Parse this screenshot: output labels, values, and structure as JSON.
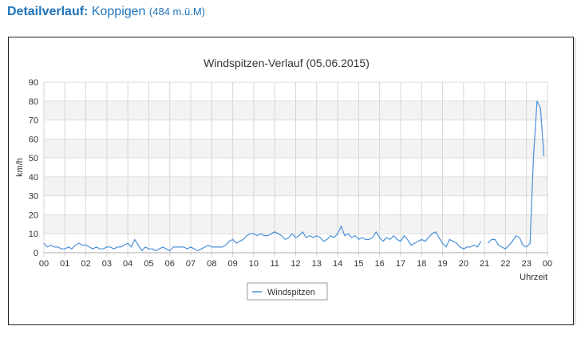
{
  "header": {
    "label": "Detailverlauf:",
    "station": "Koppigen",
    "elevation": "(484 m.ü.M)"
  },
  "chart_data": {
    "type": "line",
    "title": "Windspitzen-Verlauf (05.06.2015)",
    "xlabel": "Uhrzeit",
    "ylabel": "km/h",
    "xlim": [
      0,
      24
    ],
    "ylim": [
      0,
      90
    ],
    "x_tick_labels": [
      "00",
      "01",
      "02",
      "03",
      "04",
      "05",
      "06",
      "07",
      "08",
      "09",
      "10",
      "11",
      "12",
      "13",
      "14",
      "15",
      "16",
      "17",
      "18",
      "19",
      "20",
      "21",
      "22",
      "23",
      "00"
    ],
    "y_tick_labels": [
      "0",
      "10",
      "20",
      "30",
      "40",
      "50",
      "60",
      "70",
      "80",
      "90"
    ],
    "grid": "horizontal alternating bands",
    "legend": "bottom-center",
    "series": [
      {
        "name": "Windspitzen",
        "color": "#4a90d9",
        "points": [
          [
            0.0,
            5
          ],
          [
            0.17,
            3
          ],
          [
            0.33,
            4
          ],
          [
            0.5,
            3
          ],
          [
            0.67,
            3
          ],
          [
            0.83,
            2
          ],
          [
            1.0,
            2
          ],
          [
            1.17,
            3
          ],
          [
            1.33,
            2
          ],
          [
            1.5,
            4
          ],
          [
            1.67,
            5
          ],
          [
            1.83,
            4
          ],
          [
            2.0,
            4
          ],
          [
            2.17,
            3
          ],
          [
            2.33,
            2
          ],
          [
            2.5,
            3
          ],
          [
            2.67,
            2
          ],
          [
            2.83,
            2
          ],
          [
            3.0,
            3
          ],
          [
            3.17,
            3
          ],
          [
            3.33,
            2
          ],
          [
            3.5,
            3
          ],
          [
            3.67,
            3
          ],
          [
            3.83,
            4
          ],
          [
            4.0,
            5
          ],
          [
            4.17,
            3
          ],
          [
            4.33,
            7
          ],
          [
            4.5,
            4
          ],
          [
            4.67,
            1
          ],
          [
            4.83,
            3
          ],
          [
            5.0,
            2
          ],
          [
            5.17,
            2
          ],
          [
            5.33,
            1
          ],
          [
            5.5,
            2
          ],
          [
            5.67,
            3
          ],
          [
            5.83,
            2
          ],
          [
            6.0,
            1
          ],
          [
            6.17,
            3
          ],
          [
            6.33,
            3
          ],
          [
            6.5,
            3
          ],
          [
            6.67,
            3
          ],
          [
            6.83,
            2
          ],
          [
            7.0,
            3
          ],
          [
            7.17,
            2
          ],
          [
            7.33,
            1
          ],
          [
            7.5,
            2
          ],
          [
            7.67,
            3
          ],
          [
            7.83,
            4
          ],
          [
            8.0,
            3
          ],
          [
            8.17,
            3
          ],
          [
            8.33,
            3
          ],
          [
            8.5,
            3
          ],
          [
            8.67,
            4
          ],
          [
            8.83,
            6
          ],
          [
            9.0,
            7
          ],
          [
            9.17,
            5
          ],
          [
            9.33,
            6
          ],
          [
            9.5,
            7
          ],
          [
            9.67,
            9
          ],
          [
            9.83,
            10
          ],
          [
            10.0,
            10
          ],
          [
            10.17,
            9
          ],
          [
            10.33,
            10
          ],
          [
            10.5,
            9
          ],
          [
            10.67,
            9
          ],
          [
            10.83,
            10
          ],
          [
            11.0,
            11
          ],
          [
            11.17,
            10
          ],
          [
            11.33,
            9
          ],
          [
            11.5,
            7
          ],
          [
            11.67,
            8
          ],
          [
            11.83,
            10
          ],
          [
            12.0,
            8
          ],
          [
            12.17,
            9
          ],
          [
            12.33,
            11
          ],
          [
            12.5,
            8
          ],
          [
            12.67,
            9
          ],
          [
            12.83,
            8
          ],
          [
            13.0,
            9
          ],
          [
            13.17,
            8
          ],
          [
            13.33,
            6
          ],
          [
            13.5,
            7
          ],
          [
            13.67,
            9
          ],
          [
            13.83,
            8
          ],
          [
            14.0,
            10
          ],
          [
            14.17,
            14
          ],
          [
            14.33,
            9
          ],
          [
            14.5,
            10
          ],
          [
            14.67,
            8
          ],
          [
            14.83,
            9
          ],
          [
            15.0,
            7
          ],
          [
            15.17,
            8
          ],
          [
            15.33,
            7
          ],
          [
            15.5,
            7
          ],
          [
            15.67,
            8
          ],
          [
            15.83,
            11
          ],
          [
            16.0,
            8
          ],
          [
            16.17,
            6
          ],
          [
            16.33,
            8
          ],
          [
            16.5,
            7
          ],
          [
            16.67,
            9
          ],
          [
            16.83,
            7
          ],
          [
            17.0,
            6
          ],
          [
            17.17,
            9
          ],
          [
            17.33,
            7
          ],
          [
            17.5,
            4
          ],
          [
            17.67,
            5
          ],
          [
            17.83,
            6
          ],
          [
            18.0,
            7
          ],
          [
            18.17,
            6
          ],
          [
            18.33,
            8
          ],
          [
            18.5,
            10
          ],
          [
            18.67,
            11
          ],
          [
            18.83,
            8
          ],
          [
            19.0,
            5
          ],
          [
            19.17,
            3
          ],
          [
            19.33,
            7
          ],
          [
            19.5,
            6
          ],
          [
            19.67,
            5
          ],
          [
            19.83,
            3
          ],
          [
            20.0,
            2
          ],
          [
            20.17,
            3
          ],
          [
            20.33,
            3
          ],
          [
            20.5,
            4
          ],
          [
            20.67,
            3
          ],
          [
            20.83,
            6
          ],
          null,
          [
            21.17,
            5
          ],
          [
            21.33,
            7
          ],
          [
            21.5,
            7
          ],
          [
            21.67,
            4
          ],
          [
            21.83,
            3
          ],
          [
            22.0,
            2
          ],
          [
            22.17,
            4
          ],
          [
            22.33,
            6
          ],
          [
            22.5,
            9
          ],
          [
            22.67,
            8
          ],
          [
            22.83,
            4
          ],
          [
            23.0,
            3
          ],
          [
            23.17,
            5
          ],
          [
            23.33,
            50
          ],
          [
            23.5,
            80
          ],
          [
            23.67,
            76
          ],
          [
            23.83,
            51
          ]
        ]
      }
    ]
  }
}
